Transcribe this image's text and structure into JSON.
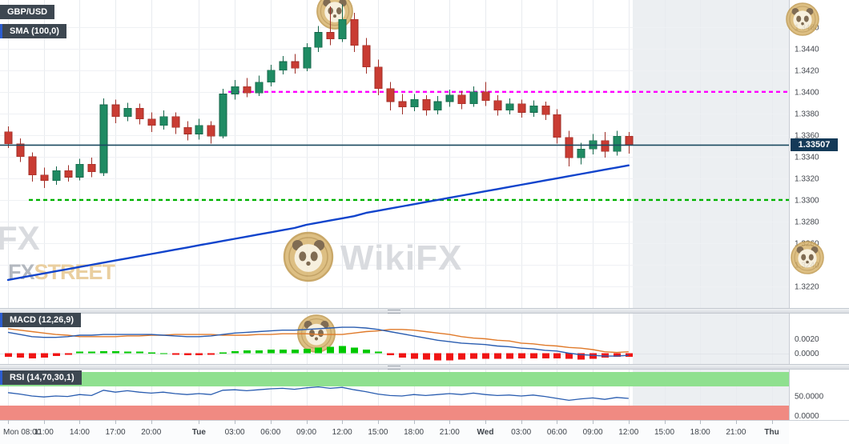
{
  "header": {
    "symbol_badge": "GBP/USD",
    "sma_badge": "SMA (100,0)",
    "macd_badge": "MACD (12,26,9)",
    "rsi_badge": "RSI (14,70,30,1)"
  },
  "price_label": "1.33507",
  "watermarks": {
    "brand": "WikiFX",
    "left_fragment": "FX",
    "fxstreet_fx": "FX",
    "fxstreet_street": "STREET"
  },
  "colors": {
    "bull": "#1f8b63",
    "bull_border": "#14654a",
    "bear": "#c93c33",
    "bear_border": "#9e2d26",
    "sma_line": "#1144cc",
    "resistance_line": "#ff00ff",
    "support_line": "#00b200",
    "last_price_line": "#1b4a60",
    "price_tag_bg": "#143a58",
    "macd_line": "#2a5db0",
    "macd_signal_line": "#e07a2a",
    "hist_up": "#00c800",
    "hist_down": "#f01414",
    "rsi_line": "#2a5db0",
    "rsi_overbought_band": "#8fe08f",
    "rsi_oversold_band": "#f08a82",
    "future_bg": "#eceff2",
    "grid_vertical": "#e8ebef",
    "grid_horizontal": "#eff1f4",
    "axis_text": "#42464d",
    "badge_bg": "#3d4751",
    "badge_accent": "#2d5ed0",
    "watermark_text": "#d9dbdf",
    "watermark_gold": "#d8b46e",
    "fxstreet_fx_color": "#b3b8bf",
    "fxstreet_street_color": "#eacfa0"
  },
  "chart_data": {
    "type": "candlestick",
    "symbol": "GBP/USD",
    "last_price": 1.33507,
    "price_range": [
      1.32,
      1.3485
    ],
    "price_ticks": [
      "1.3460",
      "1.3440",
      "1.3420",
      "1.3400",
      "1.3380",
      "1.3360",
      "1.3340",
      "1.3320",
      "1.3300",
      "1.3280",
      "1.3260",
      "1.3240",
      "1.3220"
    ],
    "levels": {
      "resistance": 1.34,
      "support": 1.33
    },
    "time_labels": [
      "Mon 08:00",
      "11:00",
      "14:00",
      "17:00",
      "20:00",
      "Tue",
      "03:00",
      "06:00",
      "09:00",
      "12:00",
      "15:00",
      "18:00",
      "21:00",
      "Wed",
      "03:00",
      "06:00",
      "09:00",
      "12:00",
      "15:00",
      "18:00",
      "21:00",
      "Thu"
    ],
    "time_label_indices": [
      0,
      3,
      6,
      9,
      12,
      16,
      19,
      22,
      25,
      28,
      31,
      34,
      37,
      40,
      43,
      46,
      49,
      52,
      55,
      58,
      61,
      64
    ],
    "candles": [
      [
        1.3363,
        1.3368,
        1.3348,
        1.3352
      ],
      [
        1.3352,
        1.3357,
        1.3335,
        1.334
      ],
      [
        1.334,
        1.3344,
        1.3317,
        1.3323
      ],
      [
        1.3323,
        1.333,
        1.3311,
        1.3318
      ],
      [
        1.3318,
        1.3331,
        1.3314,
        1.3327
      ],
      [
        1.3327,
        1.3332,
        1.3317,
        1.3321
      ],
      [
        1.3321,
        1.3338,
        1.3318,
        1.3333
      ],
      [
        1.3333,
        1.3339,
        1.3321,
        1.3326
      ],
      [
        1.3325,
        1.3394,
        1.3322,
        1.3388
      ],
      [
        1.3388,
        1.3393,
        1.3371,
        1.3377
      ],
      [
        1.3377,
        1.339,
        1.3373,
        1.3385
      ],
      [
        1.3385,
        1.3389,
        1.337,
        1.3375
      ],
      [
        1.3375,
        1.3381,
        1.3363,
        1.3369
      ],
      [
        1.3369,
        1.3383,
        1.3365,
        1.3377
      ],
      [
        1.3377,
        1.3381,
        1.3361,
        1.3367
      ],
      [
        1.3367,
        1.3373,
        1.3355,
        1.3361
      ],
      [
        1.3361,
        1.3375,
        1.3356,
        1.3369
      ],
      [
        1.3369,
        1.3373,
        1.3352,
        1.3359
      ],
      [
        1.3359,
        1.3403,
        1.3357,
        1.3398
      ],
      [
        1.3398,
        1.3411,
        1.3393,
        1.3405
      ],
      [
        1.3405,
        1.3413,
        1.3395,
        1.3399
      ],
      [
        1.3399,
        1.3415,
        1.3396,
        1.3409
      ],
      [
        1.3409,
        1.3425,
        1.3405,
        1.342
      ],
      [
        1.342,
        1.3433,
        1.3416,
        1.3428
      ],
      [
        1.3428,
        1.3435,
        1.3417,
        1.3422
      ],
      [
        1.3422,
        1.3445,
        1.3419,
        1.3441
      ],
      [
        1.3441,
        1.3461,
        1.3437,
        1.3455
      ],
      [
        1.3455,
        1.3479,
        1.3443,
        1.3449
      ],
      [
        1.3449,
        1.3481,
        1.3446,
        1.3467
      ],
      [
        1.3467,
        1.3473,
        1.3437,
        1.3443
      ],
      [
        1.3443,
        1.345,
        1.3417,
        1.3423
      ],
      [
        1.3423,
        1.343,
        1.3397,
        1.3403
      ],
      [
        1.3403,
        1.3409,
        1.3383,
        1.3391
      ],
      [
        1.3391,
        1.3398,
        1.3379,
        1.3386
      ],
      [
        1.3386,
        1.3398,
        1.3382,
        1.3393
      ],
      [
        1.3393,
        1.3397,
        1.3378,
        1.3383
      ],
      [
        1.3383,
        1.3396,
        1.3379,
        1.3391
      ],
      [
        1.3391,
        1.3402,
        1.3386,
        1.3397
      ],
      [
        1.3397,
        1.3401,
        1.3384,
        1.3389
      ],
      [
        1.3389,
        1.3405,
        1.3386,
        1.34
      ],
      [
        1.34,
        1.3409,
        1.3387,
        1.3392
      ],
      [
        1.3392,
        1.3397,
        1.3378,
        1.3383
      ],
      [
        1.3383,
        1.3394,
        1.3379,
        1.3389
      ],
      [
        1.3389,
        1.3393,
        1.3376,
        1.3381
      ],
      [
        1.3381,
        1.3392,
        1.3377,
        1.3387
      ],
      [
        1.3387,
        1.3391,
        1.3374,
        1.3379
      ],
      [
        1.3379,
        1.3384,
        1.3352,
        1.3358
      ],
      [
        1.3358,
        1.3364,
        1.3331,
        1.3339
      ],
      [
        1.3339,
        1.3353,
        1.3333,
        1.3347
      ],
      [
        1.3347,
        1.3361,
        1.3342,
        1.3355
      ],
      [
        1.3355,
        1.3363,
        1.3339,
        1.3345
      ],
      [
        1.3345,
        1.3364,
        1.3341,
        1.3359
      ],
      [
        1.3359,
        1.3363,
        1.3343,
        1.33507
      ]
    ],
    "sma": [
      1.3226,
      1.3228,
      1.323,
      1.3232,
      1.3234,
      1.3236,
      1.3238,
      1.324,
      1.3242,
      1.3244,
      1.3246,
      1.3248,
      1.325,
      1.3252,
      1.3254,
      1.3256,
      1.3258,
      1.326,
      1.3262,
      1.3264,
      1.3266,
      1.3268,
      1.327,
      1.3272,
      1.3274,
      1.3277,
      1.3279,
      1.3281,
      1.3283,
      1.3285,
      1.3288,
      1.329,
      1.3292,
      1.3294,
      1.3296,
      1.3298,
      1.33,
      1.3302,
      1.3304,
      1.3306,
      1.3308,
      1.331,
      1.3312,
      1.3314,
      1.3316,
      1.3318,
      1.332,
      1.3322,
      1.3324,
      1.3326,
      1.3328,
      1.333,
      1.3332
    ],
    "macd": {
      "ticks": [
        "0.0020",
        "0.0000"
      ],
      "range": [
        -0.0015,
        0.0055
      ],
      "macd": [
        0.0029,
        0.0026,
        0.0023,
        0.0022,
        0.0022,
        0.0023,
        0.0025,
        0.0025,
        0.0026,
        0.0026,
        0.0026,
        0.0026,
        0.0026,
        0.0025,
        0.0024,
        0.0023,
        0.0023,
        0.0024,
        0.0026,
        0.0028,
        0.0029,
        0.003,
        0.0031,
        0.0032,
        0.0032,
        0.0033,
        0.0034,
        0.0035,
        0.0036,
        0.0036,
        0.0035,
        0.0033,
        0.003,
        0.0027,
        0.0024,
        0.0021,
        0.0018,
        0.0016,
        0.0014,
        0.0013,
        0.0012,
        0.001,
        0.0009,
        0.0007,
        0.0006,
        0.0004,
        0.0003,
        0.0,
        -0.0002,
        -0.0003,
        -0.0004,
        -0.0004,
        -0.0003
      ],
      "signal": [
        0.0034,
        0.0032,
        0.003,
        0.0028,
        0.0026,
        0.0025,
        0.0023,
        0.0023,
        0.0023,
        0.0023,
        0.0024,
        0.0024,
        0.0025,
        0.0025,
        0.0026,
        0.0026,
        0.0026,
        0.0026,
        0.0025,
        0.0025,
        0.0025,
        0.0026,
        0.0026,
        0.0027,
        0.0027,
        0.0027,
        0.0026,
        0.0026,
        0.0026,
        0.0028,
        0.003,
        0.0031,
        0.0033,
        0.0033,
        0.0032,
        0.003,
        0.0028,
        0.0026,
        0.0023,
        0.0021,
        0.002,
        0.0018,
        0.0017,
        0.0014,
        0.0013,
        0.0011,
        0.001,
        0.0008,
        0.0007,
        0.0005,
        0.0002,
        0.0001,
        0.0002
      ],
      "hist": [
        -0.0005,
        -0.0006,
        -0.0007,
        -0.0006,
        -0.0004,
        -0.0002,
        0.0002,
        0.0002,
        0.0003,
        0.0003,
        0.0002,
        0.0002,
        0.0001,
        0.0,
        -0.0002,
        -0.0003,
        -0.0003,
        -0.0002,
        0.0001,
        0.0003,
        0.0004,
        0.0004,
        0.0005,
        0.0005,
        0.0005,
        0.0006,
        0.0008,
        0.0009,
        0.001,
        0.0008,
        0.0005,
        0.0002,
        -0.0003,
        -0.0006,
        -0.0008,
        -0.0009,
        -0.001,
        -0.001,
        -0.0009,
        -0.0008,
        -0.0008,
        -0.0008,
        -0.0008,
        -0.0007,
        -0.0007,
        -0.0007,
        -0.0007,
        -0.0008,
        -0.0009,
        -0.0008,
        -0.0006,
        -0.0005,
        -0.0005
      ]
    },
    "rsi": {
      "ticks": [
        "50.0000",
        "0.0000"
      ],
      "range": [
        0,
        105
      ],
      "overbought": 70,
      "oversold": 30,
      "values": [
        57,
        54,
        50,
        48,
        50,
        49,
        53,
        51,
        62,
        58,
        61,
        58,
        56,
        58,
        55,
        53,
        55,
        53,
        62,
        63,
        61,
        63,
        65,
        66,
        64,
        67,
        69,
        66,
        68,
        63,
        59,
        54,
        51,
        50,
        53,
        51,
        53,
        55,
        53,
        56,
        53,
        51,
        52,
        50,
        52,
        49,
        45,
        41,
        44,
        46,
        43,
        47,
        45
      ]
    }
  }
}
